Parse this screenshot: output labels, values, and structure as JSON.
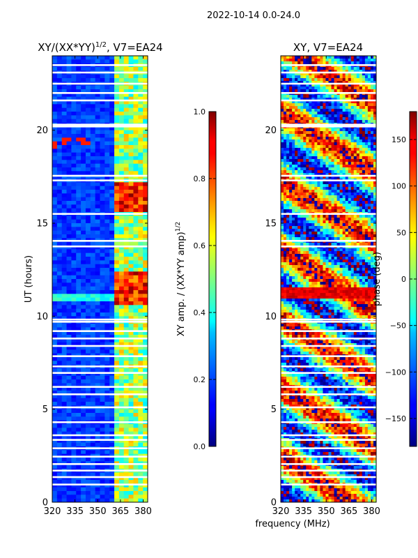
{
  "suptitle": "2022-10-14 0.0-24.0",
  "xlabel_shared": "frequency (MHz)",
  "chart_data": [
    {
      "type": "heatmap",
      "title": "XY/(XX*YY)",
      "title_sup": "1/2",
      "title_suffix": ", V7=EA24",
      "xlabel": "",
      "ylabel": "UT (hours)",
      "x_ticks": [
        320,
        335,
        350,
        365,
        380
      ],
      "y_ticks": [
        0,
        5,
        10,
        15,
        20
      ],
      "xlim": [
        320,
        383
      ],
      "ylim": [
        0,
        24
      ],
      "colorbar": {
        "label": "XY amp. / (XX*YY amp)",
        "label_sup": "1/2",
        "range": [
          0.0,
          1.0
        ],
        "ticks": [
          "0.0",
          "0.2",
          "0.4",
          "0.6",
          "0.8",
          "1.0"
        ],
        "colormap": "jet"
      },
      "missing_hours": [
        0.95,
        1.35,
        1.7,
        2.05,
        2.45,
        2.9,
        3.35,
        3.6,
        4.3,
        5.1,
        5.8,
        6.2,
        6.95,
        7.3,
        7.85,
        8.4,
        8.8,
        9.2,
        9.7,
        9.82,
        13.75,
        14.05,
        15.5,
        17.3,
        17.55,
        20.2,
        20.3,
        21.6,
        22.0,
        22.5,
        23.1,
        23.5
      ],
      "bright_band_freq_MHz": [
        360,
        383
      ],
      "bright_band_hours": [
        [
          10.6,
          12.3
        ],
        [
          15.6,
          17.2
        ]
      ]
    },
    {
      "type": "heatmap",
      "title": "XY, V7=EA24",
      "xlabel": "frequency (MHz)",
      "ylabel": "",
      "x_ticks": [
        320,
        335,
        350,
        365,
        380
      ],
      "y_ticks": [
        0,
        5,
        10,
        15,
        20
      ],
      "xlim": [
        320,
        383
      ],
      "ylim": [
        0,
        24
      ],
      "colorbar": {
        "label": "phase (deg)",
        "range": [
          -180,
          180
        ],
        "ticks": [
          "−150",
          "−100",
          "−50",
          "0",
          "50",
          "100",
          "150"
        ],
        "colormap": "jet"
      },
      "missing_hours": [
        0.95,
        1.35,
        1.7,
        2.05,
        2.45,
        2.9,
        3.35,
        3.6,
        4.3,
        5.1,
        5.8,
        6.2,
        6.95,
        7.3,
        7.85,
        8.4,
        8.8,
        9.2,
        9.7,
        9.82,
        13.75,
        14.05,
        15.5,
        17.3,
        17.55,
        20.2,
        20.3,
        21.6,
        22.0,
        22.5,
        23.1,
        23.5
      ]
    }
  ]
}
